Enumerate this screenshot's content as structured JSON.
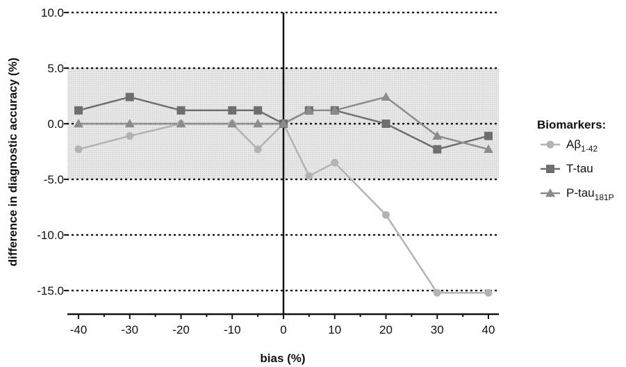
{
  "chart_data": {
    "type": "line",
    "xlabel": "bias (%)",
    "ylabel": "difference in diagnostic accuracy (%)",
    "x": [
      -40,
      -30,
      -20,
      -10,
      -5,
      0,
      5,
      10,
      20,
      30,
      40
    ],
    "xticks": [
      "-40",
      "-30",
      "-20",
      "-10",
      "0",
      "10",
      "20",
      "30",
      "40"
    ],
    "xlim": [
      -40,
      40
    ],
    "ylim": [
      -17,
      10
    ],
    "yticks": [
      "10.0",
      "5.0",
      "0.0",
      "-5.0",
      "-10.0",
      "-15.0"
    ],
    "shaded_band": [
      -5,
      5
    ],
    "grid": "dotted horizontal lines at labeled y ticks",
    "legend_title": "Biomarkers:",
    "legend_placement": "right",
    "series": [
      {
        "name": "Aβ1-42",
        "name_main": "Aβ",
        "name_sub": "1-42",
        "marker": "circle",
        "color": "#b3b3b3",
        "values": [
          -2.3,
          -1.1,
          0,
          0,
          -2.3,
          0,
          -4.7,
          -3.5,
          -8.2,
          -15.2,
          -15.2
        ]
      },
      {
        "name": "T-tau",
        "name_main": "T-tau",
        "name_sub": "",
        "marker": "square",
        "color": "#6e6e6e",
        "values": [
          1.2,
          2.4,
          1.2,
          1.2,
          1.2,
          0,
          1.2,
          1.2,
          0,
          -2.3,
          -1.1
        ]
      },
      {
        "name": "P-tau181P",
        "name_main": "P-tau",
        "name_sub": "181P",
        "marker": "triangle",
        "color": "#8c8c8c",
        "values": [
          0,
          0,
          0,
          0,
          0,
          0,
          1.2,
          1.2,
          2.4,
          -1.1,
          -2.3
        ]
      }
    ]
  }
}
